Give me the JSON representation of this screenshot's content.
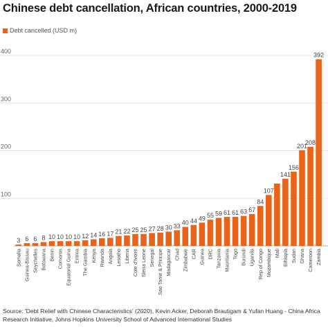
{
  "chart_data": {
    "type": "bar",
    "title": "Chinese debt cancellation, African countries, 2000-2019",
    "legend": "Debt cancelled (USD m)",
    "legend_position": "top-left",
    "bar_color": "#e8641b",
    "grid": true,
    "ylim": [
      0,
      400
    ],
    "yticks": [
      100,
      200,
      300,
      400
    ],
    "ytick_labels": [
      "100",
      "200",
      "300",
      "400"
    ],
    "categories": [
      "Somalia",
      "Guinea-Bissau",
      "Seychelles",
      "Botswana",
      "Benin",
      "Comoros",
      "Equatorial Guina",
      "Eritrea",
      "The Gambia",
      "Kenya",
      "Rwanda",
      "Angola",
      "Lesotho",
      "Liberia",
      "Cote d'Ivoire",
      "Sierra Leone",
      "Senegal",
      "Sao Tome & Principe",
      "Madagascar",
      "Chad",
      "Zimbabwe",
      "CAR",
      "Guinea",
      "DRC",
      "Tanzania",
      "Mauritania",
      "Togo",
      "Burundi",
      "Uganda",
      "Rep of Congo",
      "Mozambique",
      "Mali",
      "Ethiopia",
      "Sudan",
      "Ghana",
      "Cameroon",
      "Zambia"
    ],
    "values": [
      3,
      6,
      6,
      8,
      10,
      10,
      10,
      10,
      12,
      14,
      16,
      17,
      21,
      22,
      25,
      25,
      27,
      28,
      30,
      33,
      40,
      44,
      49,
      55,
      59,
      61,
      61,
      63,
      67,
      84,
      107,
      131,
      141,
      156,
      201,
      208,
      392
    ],
    "value_labels": [
      "3",
      "6",
      "6",
      "8",
      "10",
      "10",
      "10",
      "10",
      "12",
      "14",
      "16",
      "17",
      "21",
      "22",
      "25",
      "25",
      "27",
      "28",
      "30",
      "33",
      "40",
      "44",
      "49",
      "55",
      "59",
      "61",
      "61",
      "63",
      "67",
      "84",
      "107",
      "",
      "141",
      "156",
      "201",
      "208",
      "392"
    ]
  },
  "source": "Source: 'Debt Relief with Chinese Characteristics' (2020), Kevin Acker, Deborah Brautigam & Yufan Huang - China Africa Research Initiative, Johns Hopkins University School of Advanced International Studies"
}
